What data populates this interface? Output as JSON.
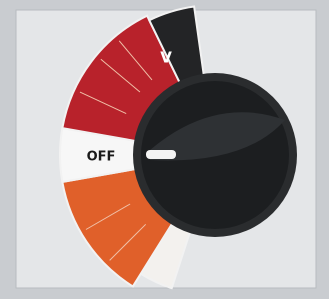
{
  "dial": {
    "labels": {
      "volts": "V",
      "off": "OFF"
    }
  }
}
